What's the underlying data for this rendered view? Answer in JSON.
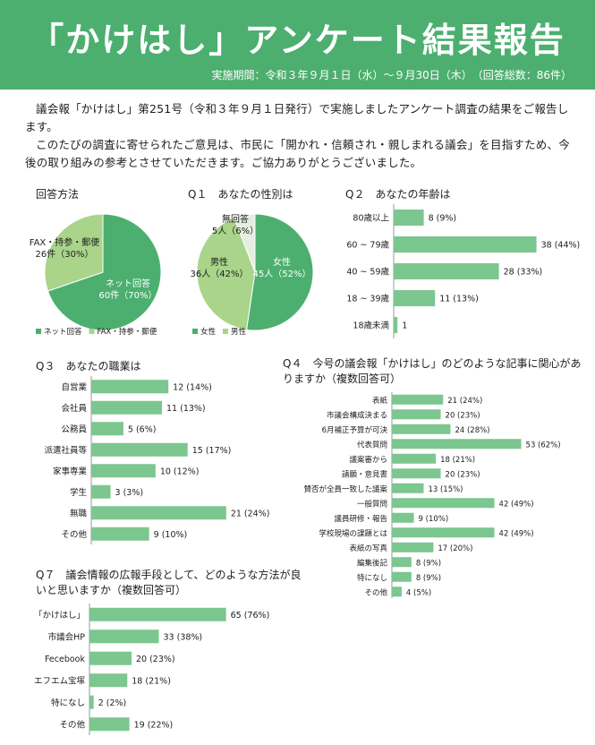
{
  "header": {
    "title": "「かけはし」アンケート結果報告",
    "survey_info": "実施期間：令和３年９月１日（水）～９月30日（木）　（回答総数：86件）"
  },
  "intro": {
    "paragraph1": "議会報「かけはし」第251号（令和３年９月１日発行）で実施しましたアンケート調査の結果をご報告します。",
    "paragraph2": "このたびの調査に寄せられたご意見は、市民に「開かれ・信頼され・親しまれる議会」を目指すため、今後の取り組みの参考とさせていただきます。ご協力ありがとうございました。"
  },
  "colors": {
    "accent": "#4caf6f",
    "bar": "#7cc68f",
    "pie_light": "#a9d48a",
    "pie_pale": "#e4efe2"
  },
  "chart_data": [
    {
      "id": "method",
      "type": "pie",
      "title": "回答方法",
      "slices": [
        {
          "name": "ネット回答",
          "count": 60,
          "pct": 70,
          "label": "ネット回答\n60件（70%）",
          "color": "#4caf6f"
        },
        {
          "name": "FAX・持参・郵便",
          "count": 26,
          "pct": 30,
          "label": "FAX・持参・郵便\n26件（30%）",
          "color": "#a9d48a"
        }
      ],
      "legend": [
        "ネット回答",
        "FAX・持参・郵便"
      ]
    },
    {
      "id": "q1",
      "type": "pie",
      "title": "Q１　あなたの性別は",
      "slices": [
        {
          "name": "女性",
          "count": 45,
          "pct": 52,
          "label": "女性\n45人（52%）",
          "color": "#4caf6f"
        },
        {
          "name": "男性",
          "count": 36,
          "pct": 42,
          "label": "男性\n36人（42%）",
          "color": "#a9d48a"
        },
        {
          "name": "無回答",
          "count": 5,
          "pct": 6,
          "label": "無回答\n5人（6%）",
          "color": "#e4efe2"
        }
      ],
      "legend": [
        "女性",
        "男性"
      ]
    },
    {
      "id": "q2",
      "type": "bar",
      "orientation": "horizontal",
      "title": "Q２　あなたの年齢は",
      "xlim": [
        0,
        40
      ],
      "categories": [
        "80歳以上",
        "60 ~ 79歳",
        "40 ~ 59歳",
        "18 ~ 39歳",
        "18歳未満"
      ],
      "values": [
        8,
        38,
        28,
        11,
        1
      ],
      "labels": [
        "8 (9%)",
        "38 (44%)",
        "28 (33%)",
        "11 (13%)",
        "1"
      ]
    },
    {
      "id": "q3",
      "type": "bar",
      "orientation": "horizontal",
      "title": "Q３　あなたの職業は",
      "xlim": [
        0,
        22
      ],
      "categories": [
        "自営業",
        "会社員",
        "公務員",
        "派遣社員等",
        "家事専業",
        "学生",
        "無職",
        "その他"
      ],
      "values": [
        12,
        11,
        5,
        15,
        10,
        3,
        21,
        9
      ],
      "labels": [
        "12 (14%)",
        "11 (13%)",
        "5 (6%)",
        "15 (17%)",
        "10 (12%)",
        "3 (3%)",
        "21 (24%)",
        "9 (10%)"
      ]
    },
    {
      "id": "q4",
      "type": "bar",
      "orientation": "horizontal",
      "title": "Q４　今号の議会報「かけはし」のどのような記事に関心がありますか（複数回答可）",
      "xlim": [
        0,
        55
      ],
      "categories": [
        "表紙",
        "市議会構成決まる",
        "6月補正予算が可決",
        "代表質問",
        "議案審から",
        "請願・意見書",
        "賛否が全員一致した議案",
        "一般質問",
        "議員研修・報告",
        "学校現場の課題とは",
        "表紙の写真",
        "編集後記",
        "特になし",
        "その他"
      ],
      "values": [
        21,
        20,
        24,
        53,
        18,
        20,
        13,
        42,
        9,
        42,
        17,
        8,
        8,
        4
      ],
      "labels": [
        "21 (24%)",
        "20 (23%)",
        "24 (28%)",
        "53 (62%)",
        "18 (21%)",
        "20 (23%)",
        "13 (15%)",
        "42 (49%)",
        "9 (10%)",
        "42 (49%)",
        "17 (20%)",
        "8 (9%)",
        "8 (9%)",
        "4 (5%)"
      ]
    },
    {
      "id": "q7",
      "type": "bar",
      "orientation": "horizontal",
      "title": "Q７　議会情報の広報手段として、どのような方法が良いと思いますか（複数回答可）",
      "xlim": [
        0,
        66
      ],
      "categories": [
        "「かけはし」",
        "市議会HP",
        "Fecebook",
        "エフエム宝塚",
        "特になし",
        "その他"
      ],
      "values": [
        65,
        33,
        20,
        18,
        2,
        19
      ],
      "labels": [
        "65 (76%)",
        "33 (38%)",
        "20 (23%)",
        "18 (21%)",
        "2 (2%)",
        "19 (22%)"
      ]
    }
  ]
}
